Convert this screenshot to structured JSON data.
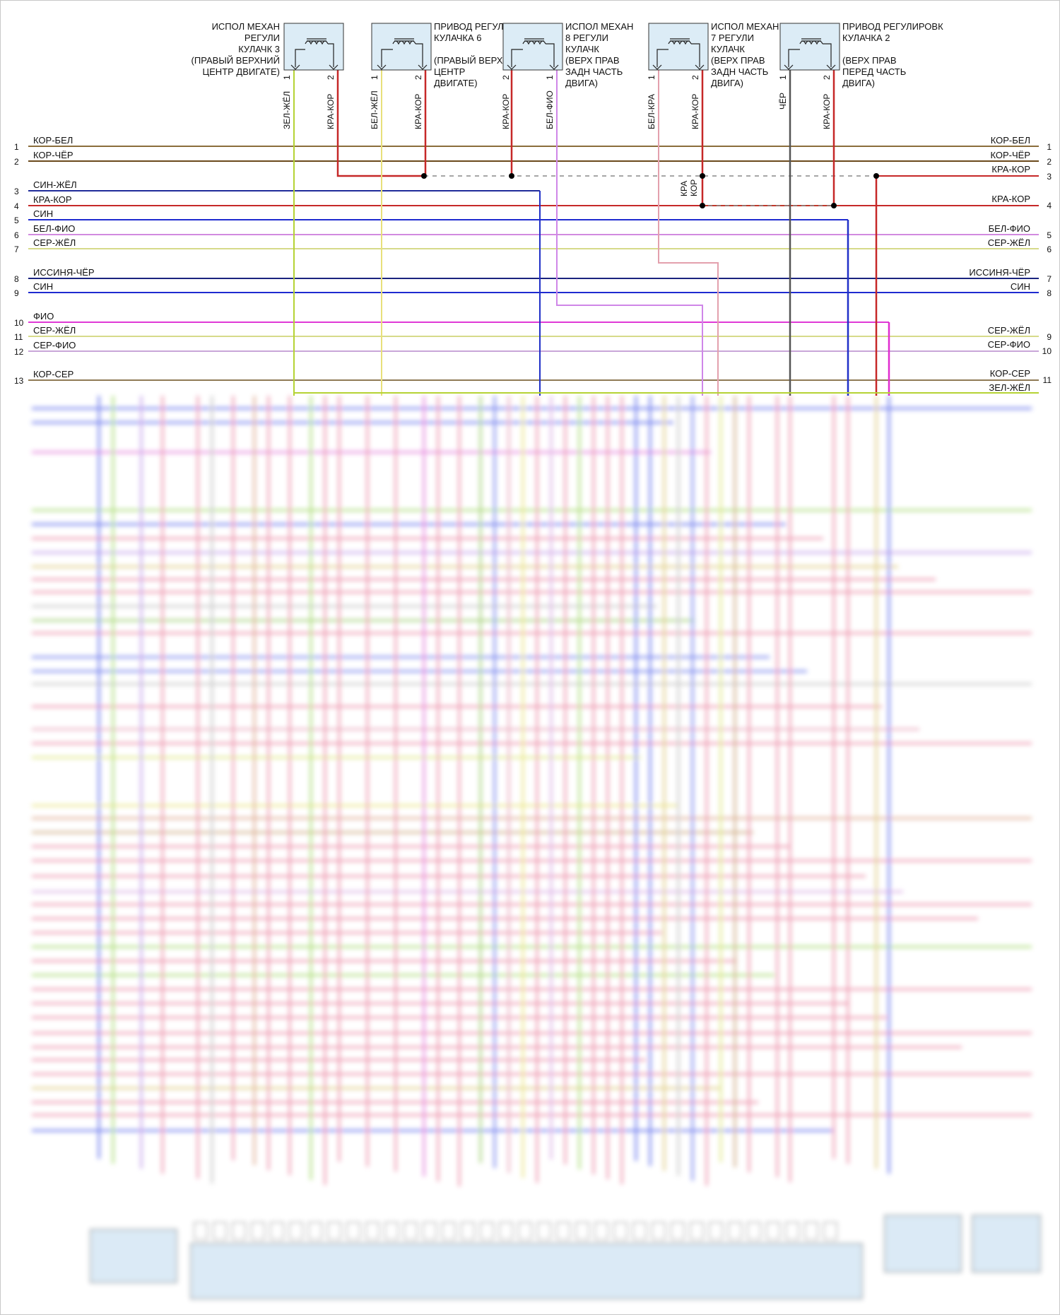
{
  "components": [
    {
      "id": "c3",
      "title": [
        "ИСПОЛ МЕХАН",
        "РЕГУЛИ",
        "КУЛАЧК 3",
        "(ПРАВЫЙ ВЕРХНИЙ",
        "ЦЕНТР ДВИГАТЕ)"
      ],
      "pins": [
        {
          "num": "1",
          "wire": "ЗЕЛ-ЖЁЛ"
        },
        {
          "num": "2",
          "wire": "КРА-КОР"
        }
      ]
    },
    {
      "id": "c6",
      "title": [
        "ПРИВОД РЕГУЛИРОВК",
        "КУЛАЧКА 6",
        "",
        "(ПРАВЫЙ ВЕРХНИЙ",
        "ЦЕНТР",
        "ДВИГАТЕ)"
      ],
      "pins": [
        {
          "num": "1",
          "wire": "БЕЛ-ЖЁЛ"
        },
        {
          "num": "2",
          "wire": "КРА-КОР"
        }
      ]
    },
    {
      "id": "c8",
      "title": [
        "ИСПОЛ МЕХАН",
        "8 РЕГУЛИ",
        "КУЛАЧК",
        "(ВЕРХ ПРАВ",
        "ЗАДН ЧАСТЬ",
        "ДВИГА)"
      ],
      "pins": [
        {
          "num": "2",
          "wire": "КРА-КОР"
        },
        {
          "num": "1",
          "wire": "БЕЛ-ФИО"
        }
      ]
    },
    {
      "id": "c7",
      "title": [
        "ИСПОЛ МЕХАН",
        "7 РЕГУЛИ",
        "КУЛАЧК",
        "(ВЕРХ ПРАВ",
        "ЗАДН ЧАСТЬ",
        "ДВИГА)"
      ],
      "pins": [
        {
          "num": "1",
          "wire": "БЕЛ-КРА"
        },
        {
          "num": "2",
          "wire": "КРА-КОР"
        }
      ]
    },
    {
      "id": "c2",
      "title": [
        "ПРИВОД РЕГУЛИРОВК",
        "КУЛАЧКА 2",
        "",
        "(ВЕРХ ПРАВ",
        "ПЕРЕД ЧАСТЬ",
        "ДВИГА)"
      ],
      "pins": [
        {
          "num": "1",
          "wire": "ЧЁР"
        },
        {
          "num": "2",
          "wire": "КРА-КОР"
        }
      ]
    }
  ],
  "splice_label": [
    "КРА",
    "КОР"
  ],
  "left_rows": [
    {
      "num": "1",
      "label": "КОР-БЕЛ",
      "color": "#8a6d3b"
    },
    {
      "num": "2",
      "label": "КОР-ЧЁР",
      "color": "#6b4a1c"
    },
    {
      "num": "3",
      "label": "СИН-ЖЁЛ",
      "color": "#1f2b9a"
    },
    {
      "num": "4",
      "label": "КРА-КОР",
      "color": "#c0392b"
    },
    {
      "num": "5",
      "label": "СИН",
      "color": "#1f2bd0"
    },
    {
      "num": "6",
      "label": "БЕЛ-ФИО",
      "color": "#d28be0"
    },
    {
      "num": "7",
      "label": "СЕР-ЖЁЛ",
      "color": "#d6da8a"
    },
    {
      "num": "8",
      "label": "ИССИНЯ-ЧЁР",
      "color": "#1a237e"
    },
    {
      "num": "9",
      "label": "СИН",
      "color": "#1f2bd0"
    },
    {
      "num": "10",
      "label": "ФИО",
      "color": "#e03ad6"
    },
    {
      "num": "11",
      "label": "СЕР-ЖЁЛ",
      "color": "#d6da8a"
    },
    {
      "num": "12",
      "label": "СЕР-ФИО",
      "color": "#c9a6d8"
    },
    {
      "num": "13",
      "label": "КОР-СЕР",
      "color": "#8f7a55"
    }
  ],
  "right_rows": [
    {
      "num": "1",
      "label": "КОР-БЕЛ"
    },
    {
      "num": "2",
      "label": "КОР-ЧЁР"
    },
    {
      "num": "3",
      "label": "КРА-КОР"
    },
    {
      "num": "4",
      "label": "КРА-КОР"
    },
    {
      "num": "5",
      "label": "БЕЛ-ФИО"
    },
    {
      "num": "6",
      "label": "СЕР-ЖЁЛ"
    },
    {
      "num": "7",
      "label": "ИССИНЯ-ЧЁР"
    },
    {
      "num": "8",
      "label": "СИН"
    },
    {
      "num": "9",
      "label": "СЕР-ЖЁЛ"
    },
    {
      "num": "10",
      "label": "СЕР-ФИО"
    },
    {
      "num": "11",
      "label": "КОР-СЕР"
    },
    {
      "num": "",
      "label": "ЗЕЛ-ЖЁЛ"
    }
  ],
  "colors": {
    "red": "#c62828",
    "yellow_green": "#b5d334",
    "pale_yellow": "#e8e07a",
    "violet": "#cf86e8",
    "pink": "#e3a0ad",
    "black": "#555555",
    "blue": "#2030c8",
    "magenta": "#e02ccf",
    "component_fill": "#dcecf6"
  },
  "blurred_region_note": ""
}
